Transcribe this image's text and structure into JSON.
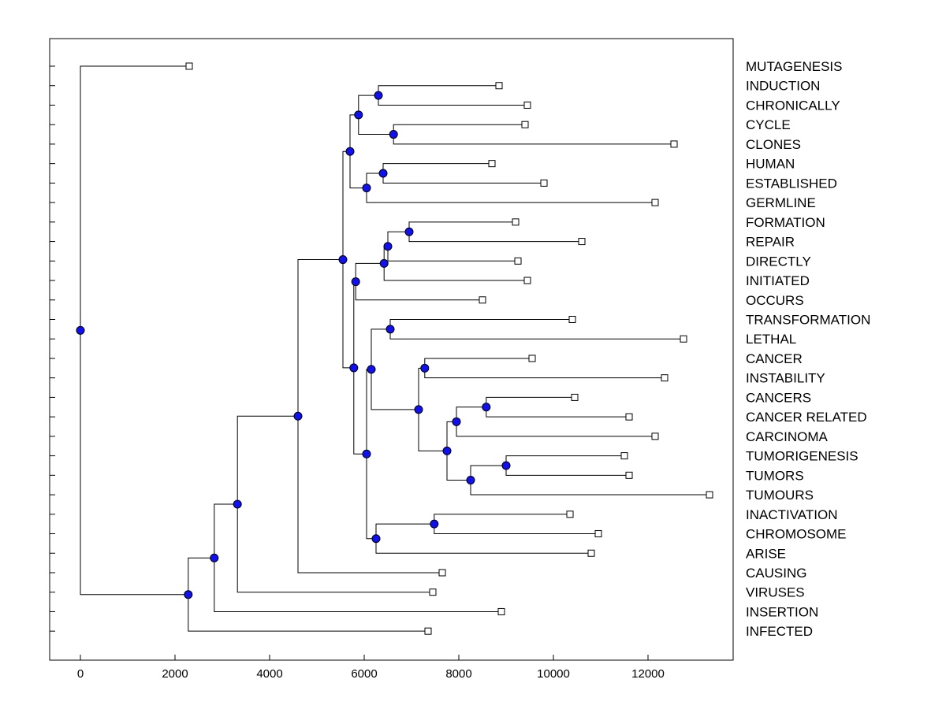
{
  "chart_data": {
    "type": "dendrogram",
    "title": "",
    "xlabel": "",
    "ylabel": "",
    "xlim": [
      -650,
      13800
    ],
    "x_ticks": [
      0,
      2000,
      4000,
      6000,
      8000,
      10000,
      12000
    ],
    "leaves": [
      {
        "label": "MUTAGENESIS",
        "x": 2300
      },
      {
        "label": "INDUCTION",
        "x": 8850
      },
      {
        "label": "CHRONICALLY",
        "x": 9450
      },
      {
        "label": "CYCLE",
        "x": 9400
      },
      {
        "label": "CLONES",
        "x": 12550
      },
      {
        "label": "HUMAN",
        "x": 8700
      },
      {
        "label": "ESTABLISHED",
        "x": 9800
      },
      {
        "label": "GERMLINE",
        "x": 12150
      },
      {
        "label": "FORMATION",
        "x": 9200
      },
      {
        "label": "REPAIR",
        "x": 10600
      },
      {
        "label": "DIRECTLY",
        "x": 9250
      },
      {
        "label": "INITIATED",
        "x": 9450
      },
      {
        "label": "OCCURS",
        "x": 8500
      },
      {
        "label": "TRANSFORMATION",
        "x": 10400
      },
      {
        "label": "LETHAL",
        "x": 12750
      },
      {
        "label": "CANCER",
        "x": 9550
      },
      {
        "label": "INSTABILITY",
        "x": 12350
      },
      {
        "label": "CANCERS",
        "x": 10450
      },
      {
        "label": "CANCER RELATED",
        "x": 11600
      },
      {
        "label": "CARCINOMA",
        "x": 12150
      },
      {
        "label": "TUMORIGENESIS",
        "x": 11500
      },
      {
        "label": "TUMORS",
        "x": 11600
      },
      {
        "label": "TUMOURS",
        "x": 13300
      },
      {
        "label": "INACTIVATION",
        "x": 10350
      },
      {
        "label": "CHROMOSOME",
        "x": 10950
      },
      {
        "label": "ARISE",
        "x": 10800
      },
      {
        "label": "CAUSING",
        "x": 7650
      },
      {
        "label": "VIRUSES",
        "x": 7450
      },
      {
        "label": "INSERTION",
        "x": 8900
      },
      {
        "label": "INFECTED",
        "x": 7350
      }
    ],
    "merges": [
      {
        "id": "n1",
        "x": 6950,
        "children": [
          8,
          9
        ]
      },
      {
        "id": "n2",
        "x": 6500,
        "children": [
          "n1",
          10
        ]
      },
      {
        "id": "n3",
        "x": 6420,
        "children": [
          "n2",
          11
        ]
      },
      {
        "id": "n4",
        "x": 5820,
        "children": [
          "n3",
          12
        ]
      },
      {
        "id": "n5",
        "x": 6300,
        "children": [
          1,
          2
        ]
      },
      {
        "id": "n6",
        "x": 6620,
        "children": [
          3,
          4
        ]
      },
      {
        "id": "n7",
        "x": 5880,
        "children": [
          "n5",
          "n6"
        ]
      },
      {
        "id": "n8",
        "x": 6400,
        "children": [
          5,
          6
        ]
      },
      {
        "id": "n9",
        "x": 6050,
        "children": [
          "n8",
          7
        ]
      },
      {
        "id": "n10",
        "x": 5700,
        "children": [
          "n7",
          "n9"
        ]
      },
      {
        "id": "n11",
        "x": 6550,
        "children": [
          13,
          14
        ]
      },
      {
        "id": "n12",
        "x": 7280,
        "children": [
          15,
          16
        ]
      },
      {
        "id": "n13",
        "x": 8580,
        "children": [
          17,
          18
        ]
      },
      {
        "id": "n14",
        "x": 7950,
        "children": [
          "n13",
          19
        ]
      },
      {
        "id": "n15",
        "x": 9000,
        "children": [
          20,
          21
        ]
      },
      {
        "id": "n16",
        "x": 8250,
        "children": [
          "n15",
          22
        ]
      },
      {
        "id": "n17",
        "x": 7750,
        "children": [
          "n14",
          "n16"
        ]
      },
      {
        "id": "n18",
        "x": 7150,
        "children": [
          "n12",
          "n17"
        ]
      },
      {
        "id": "n19",
        "x": 6150,
        "children": [
          "n11",
          "n18"
        ]
      },
      {
        "id": "n20",
        "x": 7480,
        "children": [
          23,
          24
        ]
      },
      {
        "id": "n21",
        "x": 6250,
        "children": [
          "n20",
          25
        ]
      },
      {
        "id": "n22",
        "x": 6050,
        "children": [
          "n19",
          "n21"
        ]
      },
      {
        "id": "n23",
        "x": 5780,
        "children": [
          "n4",
          "n22"
        ]
      },
      {
        "id": "n24",
        "x": 5550,
        "children": [
          "n10",
          "n23"
        ]
      },
      {
        "id": "n25",
        "x": 4600,
        "children": [
          "n24",
          26
        ]
      },
      {
        "id": "n26",
        "x": 3320,
        "children": [
          "n25",
          27
        ]
      },
      {
        "id": "n27",
        "x": 2830,
        "children": [
          "n26",
          28
        ]
      },
      {
        "id": "n28",
        "x": 2280,
        "children": [
          "n27",
          29
        ]
      },
      {
        "id": "n29",
        "x": 0,
        "children": [
          0,
          "n28"
        ]
      }
    ],
    "colors": {
      "merge_node": "#1010f0",
      "leaf_marker": "#ffffff",
      "lines": "#000000"
    }
  }
}
